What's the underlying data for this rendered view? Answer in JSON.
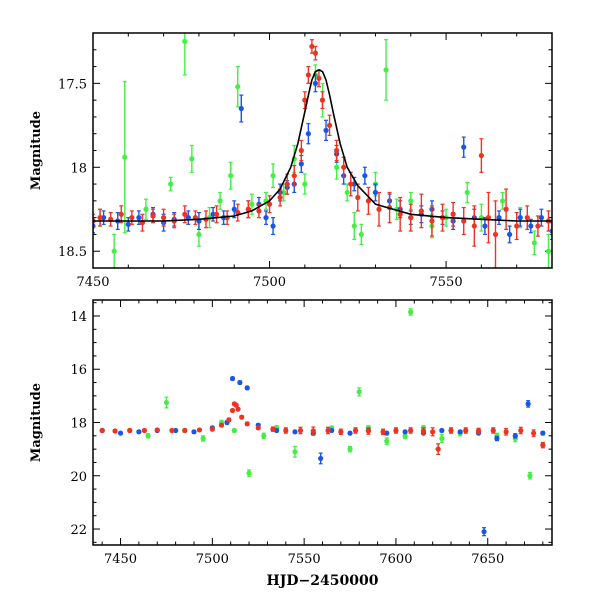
{
  "chart_data": [
    {
      "type": "scatter",
      "title": "",
      "xlabel": "",
      "ylabel": "Magnitude",
      "xlim": [
        7450,
        7580
      ],
      "ylim": [
        18.6,
        17.2
      ],
      "y_inverted": true,
      "grid": false,
      "x_ticks": [
        7450,
        7500,
        7550
      ],
      "x_tick_labels": [
        "7450",
        "7500",
        "7550"
      ],
      "y_ticks": [
        17.5,
        18,
        18.5
      ],
      "y_tick_labels": [
        "17.5",
        "18",
        "18.5"
      ],
      "colors": {
        "green": "#44ee44",
        "blue": "#1a55e6",
        "red": "#ee3322",
        "model": "#000000"
      },
      "model_curve": {
        "name": "",
        "baseline": 18.33,
        "peak": 17.42,
        "t0": 7514,
        "tE": 3.6,
        "x": [
          7450,
          7460,
          7470,
          7480,
          7490,
          7495,
          7500,
          7503,
          7506,
          7508,
          7510,
          7511,
          7512,
          7513,
          7514,
          7515,
          7516,
          7517,
          7518,
          7520,
          7522,
          7525,
          7530,
          7540,
          7550,
          7560,
          7570,
          7580
        ],
        "y": [
          18.32,
          18.32,
          18.32,
          18.31,
          18.29,
          18.26,
          18.2,
          18.13,
          18.0,
          17.86,
          17.67,
          17.57,
          17.48,
          17.43,
          17.42,
          17.43,
          17.48,
          17.57,
          17.67,
          17.86,
          18.0,
          18.11,
          18.22,
          18.28,
          18.3,
          18.31,
          18.32,
          18.32
        ]
      },
      "series": [
        {
          "color": "green",
          "x": [
            7452,
            7456,
            7459,
            7465,
            7472,
            7476,
            7478,
            7480,
            7483,
            7486,
            7489,
            7491,
            7495,
            7499,
            7501,
            7504,
            7507,
            7510,
            7513,
            7515,
            7519,
            7522,
            7524,
            7526,
            7530,
            7533,
            7536,
            7540,
            7546,
            7550,
            7556,
            7560,
            7566,
            7571,
            7575,
            7579
          ],
          "y": [
            18.3,
            18.5,
            17.94,
            18.25,
            18.1,
            17.25,
            17.95,
            18.4,
            18.3,
            18.2,
            18.05,
            17.52,
            18.22,
            18.2,
            18.05,
            18.15,
            17.95,
            18.1,
            17.45,
            17.6,
            18.0,
            18.15,
            18.35,
            18.4,
            18.1,
            17.42,
            18.25,
            18.2,
            18.35,
            18.3,
            18.15,
            18.3,
            18.2,
            18.3,
            18.45,
            18.5
          ],
          "err": [
            0.05,
            0.1,
            0.45,
            0.06,
            0.04,
            0.2,
            0.08,
            0.07,
            0.06,
            0.05,
            0.08,
            0.12,
            0.06,
            0.05,
            0.07,
            0.05,
            0.08,
            0.06,
            0.06,
            0.1,
            0.07,
            0.05,
            0.08,
            0.06,
            0.07,
            0.18,
            0.06,
            0.05,
            0.07,
            0.05,
            0.06,
            0.08,
            0.05,
            0.06,
            0.07,
            0.1
          ]
        },
        {
          "color": "blue",
          "x": [
            7450,
            7453,
            7457,
            7460,
            7463,
            7467,
            7470,
            7473,
            7477,
            7480,
            7484,
            7487,
            7490,
            7492,
            7494,
            7497,
            7499,
            7501,
            7503,
            7505,
            7507,
            7509,
            7511,
            7513,
            7516,
            7519,
            7521,
            7524,
            7527,
            7530,
            7534,
            7537,
            7540,
            7543,
            7546,
            7549,
            7552,
            7555,
            7558,
            7561,
            7565,
            7568,
            7571,
            7574,
            7577,
            7580
          ],
          "y": [
            18.35,
            18.3,
            18.32,
            18.34,
            18.3,
            18.28,
            18.33,
            18.31,
            18.3,
            18.32,
            18.28,
            18.3,
            18.25,
            17.65,
            18.25,
            18.22,
            18.3,
            18.35,
            18.15,
            18.12,
            18.1,
            17.98,
            17.8,
            17.5,
            17.78,
            17.92,
            18.05,
            18.1,
            18.05,
            18.15,
            18.2,
            18.25,
            18.3,
            18.28,
            18.25,
            18.3,
            18.32,
            17.88,
            18.3,
            18.35,
            18.3,
            18.4,
            18.3,
            18.35,
            18.3,
            18.38
          ],
          "err": [
            0.04,
            0.04,
            0.05,
            0.04,
            0.04,
            0.04,
            0.05,
            0.04,
            0.04,
            0.05,
            0.04,
            0.04,
            0.05,
            0.08,
            0.05,
            0.04,
            0.04,
            0.05,
            0.05,
            0.04,
            0.05,
            0.05,
            0.06,
            0.05,
            0.06,
            0.05,
            0.05,
            0.04,
            0.05,
            0.05,
            0.04,
            0.05,
            0.04,
            0.05,
            0.05,
            0.04,
            0.05,
            0.06,
            0.05,
            0.05,
            0.04,
            0.05,
            0.05,
            0.04,
            0.05,
            0.05
          ]
        },
        {
          "color": "red",
          "x": [
            7450,
            7452,
            7455,
            7458,
            7461,
            7464,
            7467,
            7470,
            7473,
            7476,
            7479,
            7482,
            7485,
            7488,
            7491,
            7494,
            7497,
            7500,
            7503,
            7505,
            7507,
            7509,
            7510,
            7511,
            7512,
            7513,
            7514,
            7515,
            7517,
            7519,
            7521,
            7523,
            7525,
            7528,
            7531,
            7534,
            7537,
            7540,
            7543,
            7546,
            7549,
            7552,
            7555,
            7558,
            7560,
            7562,
            7564,
            7567,
            7570,
            7573,
            7576,
            7579
          ],
          "y": [
            18.32,
            18.3,
            18.31,
            18.28,
            18.3,
            18.33,
            18.29,
            18.3,
            18.32,
            18.28,
            18.3,
            18.31,
            18.28,
            18.3,
            18.27,
            18.25,
            18.26,
            18.22,
            18.18,
            18.1,
            18.05,
            17.9,
            17.6,
            17.45,
            17.28,
            17.32,
            17.47,
            17.6,
            17.75,
            17.9,
            18.0,
            18.1,
            18.18,
            18.2,
            18.25,
            18.24,
            18.28,
            18.3,
            18.26,
            18.32,
            18.3,
            18.28,
            18.32,
            18.35,
            17.93,
            18.3,
            18.4,
            18.25,
            18.35,
            18.3,
            18.35,
            18.32
          ],
          "err": [
            0.04,
            0.05,
            0.04,
            0.05,
            0.04,
            0.05,
            0.04,
            0.05,
            0.04,
            0.05,
            0.04,
            0.05,
            0.05,
            0.04,
            0.05,
            0.05,
            0.04,
            0.05,
            0.05,
            0.06,
            0.06,
            0.06,
            0.05,
            0.05,
            0.04,
            0.04,
            0.05,
            0.05,
            0.06,
            0.06,
            0.06,
            0.07,
            0.08,
            0.08,
            0.1,
            0.09,
            0.1,
            0.08,
            0.1,
            0.09,
            0.08,
            0.07,
            0.08,
            0.12,
            0.1,
            0.15,
            0.2,
            0.12,
            0.08,
            0.07,
            0.06,
            0.06
          ]
        }
      ]
    },
    {
      "type": "scatter",
      "title": "",
      "xlabel": "HJD−2450000",
      "ylabel": "Magnitude",
      "xlim": [
        7435,
        7685
      ],
      "ylim": [
        22.6,
        13.4
      ],
      "y_inverted": true,
      "grid": false,
      "x_ticks": [
        7450,
        7500,
        7550,
        7600,
        7650
      ],
      "x_tick_labels": [
        "7450",
        "7500",
        "7550",
        "7600",
        "7650"
      ],
      "y_ticks": [
        14,
        16,
        18,
        20,
        22
      ],
      "y_tick_labels": [
        "14",
        "16",
        "18",
        "20",
        "22"
      ],
      "colors": {
        "green": "#44ee44",
        "blue": "#1a55e6",
        "red": "#ee3322"
      },
      "series": [
        {
          "color": "green",
          "x": [
            7440,
            7455,
            7465,
            7475,
            7485,
            7495,
            7505,
            7512,
            7520,
            7528,
            7535,
            7545,
            7555,
            7565,
            7575,
            7580,
            7585,
            7595,
            7605,
            7608,
            7615,
            7625,
            7635,
            7645,
            7655,
            7665,
            7673
          ],
          "y": [
            18.3,
            18.3,
            18.5,
            17.25,
            18.3,
            18.6,
            18.0,
            18.3,
            19.9,
            18.5,
            18.2,
            19.1,
            18.4,
            18.2,
            19.0,
            16.85,
            18.2,
            18.7,
            18.5,
            13.85,
            18.2,
            18.6,
            18.4,
            18.3,
            18.5,
            18.6,
            20.0
          ],
          "err": [
            0.05,
            0.06,
            0.08,
            0.2,
            0.06,
            0.1,
            0.08,
            0.06,
            0.12,
            0.1,
            0.08,
            0.2,
            0.08,
            0.06,
            0.1,
            0.15,
            0.08,
            0.12,
            0.1,
            0.12,
            0.08,
            0.15,
            0.1,
            0.08,
            0.1,
            0.12,
            0.12
          ]
        },
        {
          "color": "blue",
          "x": [
            7440,
            7450,
            7460,
            7470,
            7480,
            7490,
            7500,
            7508,
            7511,
            7515,
            7519,
            7525,
            7535,
            7545,
            7555,
            7559,
            7565,
            7575,
            7585,
            7595,
            7605,
            7615,
            7625,
            7635,
            7645,
            7648,
            7655,
            7665,
            7672,
            7680
          ],
          "y": [
            18.3,
            18.4,
            18.35,
            18.3,
            18.3,
            18.35,
            18.2,
            18.0,
            16.35,
            16.5,
            16.7,
            18.1,
            18.3,
            18.35,
            18.4,
            19.35,
            18.3,
            18.4,
            18.3,
            18.4,
            18.35,
            18.4,
            18.3,
            18.35,
            18.4,
            22.1,
            18.6,
            18.5,
            17.3,
            18.4
          ],
          "err": [
            0.05,
            0.05,
            0.05,
            0.05,
            0.05,
            0.05,
            0.05,
            0.06,
            0.06,
            0.06,
            0.06,
            0.05,
            0.05,
            0.05,
            0.05,
            0.2,
            0.05,
            0.05,
            0.05,
            0.05,
            0.05,
            0.05,
            0.05,
            0.05,
            0.05,
            0.15,
            0.08,
            0.08,
            0.12,
            0.06
          ]
        },
        {
          "color": "red",
          "x": [
            7440,
            7447,
            7455,
            7463,
            7470,
            7478,
            7485,
            7493,
            7500,
            7505,
            7509,
            7511,
            7512,
            7513,
            7514,
            7516,
            7519,
            7525,
            7533,
            7540,
            7548,
            7555,
            7563,
            7570,
            7578,
            7585,
            7593,
            7600,
            7608,
            7615,
            7620,
            7623,
            7630,
            7638,
            7645,
            7653,
            7660,
            7668,
            7675,
            7680
          ],
          "y": [
            18.3,
            18.32,
            18.3,
            18.3,
            18.28,
            18.3,
            18.3,
            18.28,
            18.25,
            18.1,
            17.9,
            17.55,
            17.3,
            17.35,
            17.5,
            17.8,
            18.05,
            18.2,
            18.25,
            18.3,
            18.3,
            18.32,
            18.3,
            18.35,
            18.3,
            18.32,
            18.35,
            18.3,
            18.3,
            18.32,
            18.35,
            19.0,
            18.3,
            18.3,
            18.32,
            18.3,
            18.35,
            18.3,
            18.4,
            18.85
          ],
          "err": [
            0.05,
            0.05,
            0.05,
            0.05,
            0.05,
            0.05,
            0.05,
            0.05,
            0.06,
            0.06,
            0.06,
            0.05,
            0.05,
            0.05,
            0.05,
            0.06,
            0.06,
            0.06,
            0.08,
            0.1,
            0.12,
            0.15,
            0.12,
            0.1,
            0.1,
            0.12,
            0.1,
            0.1,
            0.1,
            0.12,
            0.15,
            0.2,
            0.1,
            0.1,
            0.1,
            0.1,
            0.12,
            0.12,
            0.12,
            0.1
          ]
        }
      ]
    }
  ]
}
